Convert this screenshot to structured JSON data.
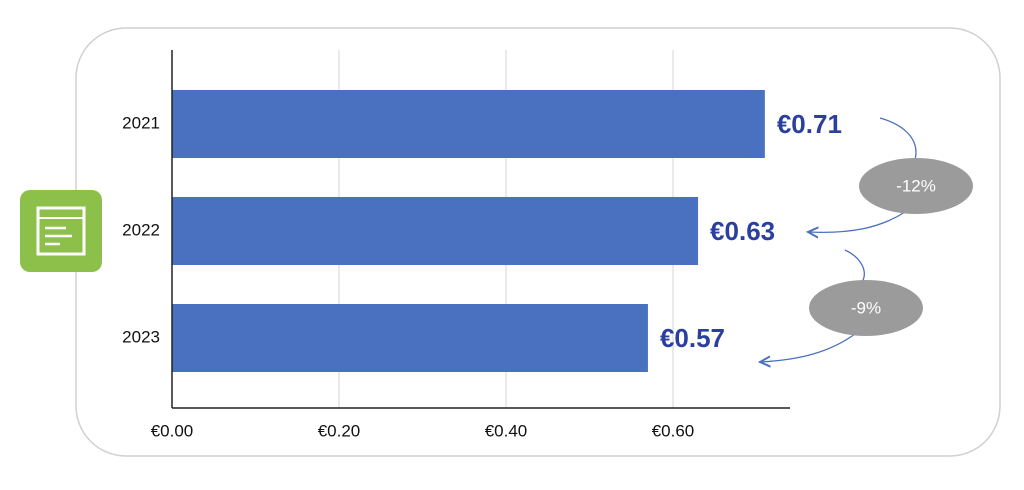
{
  "chart_data": {
    "type": "bar",
    "orientation": "horizontal",
    "categories": [
      "2021",
      "2022",
      "2023"
    ],
    "values": [
      0.71,
      0.63,
      0.57
    ],
    "value_labels": [
      "€0.71",
      "€0.63",
      "€0.57"
    ],
    "color": "#4a70c0",
    "xlim": [
      0,
      0.74
    ],
    "xticks": [
      {
        "value": 0,
        "label": "€0.00"
      },
      {
        "value": 0.2,
        "label": "€0.20"
      },
      {
        "value": 0.4,
        "label": "€0.40"
      },
      {
        "value": 0.6,
        "label": "€0.60"
      }
    ],
    "grid": true,
    "annotations": [
      "-12%",
      "-9%"
    ]
  }
}
